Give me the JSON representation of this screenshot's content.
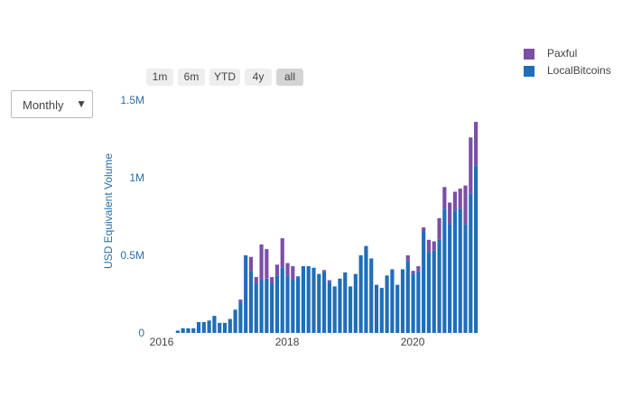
{
  "range_selector": {
    "buttons": [
      {
        "label": "1m",
        "active": false
      },
      {
        "label": "6m",
        "active": false
      },
      {
        "label": "YTD",
        "active": false
      },
      {
        "label": "4y",
        "active": false
      },
      {
        "label": "all",
        "active": true
      }
    ]
  },
  "frequency_dropdown": {
    "selected": "Monthly"
  },
  "colors": {
    "paxful": "#7b4fa6",
    "localbitcoins": "#1f6eb8",
    "axis_text": "#2a6fa8",
    "year_text": "#444444"
  },
  "chart_data": {
    "type": "bar",
    "barmode": "stack",
    "title": "",
    "ylabel": "USD Equivalent Volume",
    "xlabel": "",
    "x_start": "2016-01",
    "x_end": "2021-04",
    "x_ticks": [
      "2016",
      "2018",
      "2020"
    ],
    "y_ticks": [
      "0",
      "0.5M",
      "1M",
      "1.5M"
    ],
    "ylim": [
      0,
      1500000
    ],
    "grid": false,
    "legend_position": "top-right",
    "series": [
      {
        "name": "Paxful",
        "color_key": "paxful",
        "x": [
          "2016-06",
          "2016-07",
          "2016-08",
          "2016-09",
          "2016-10",
          "2016-11",
          "2016-12",
          "2017-01",
          "2017-02",
          "2017-03",
          "2017-04",
          "2017-05",
          "2017-06",
          "2017-07",
          "2017-08",
          "2017-09",
          "2017-10",
          "2017-11",
          "2017-12",
          "2018-01",
          "2018-02",
          "2018-03",
          "2018-04",
          "2018-05",
          "2018-06",
          "2018-07",
          "2018-08",
          "2018-09",
          "2018-10",
          "2018-11",
          "2018-12",
          "2019-01",
          "2019-02",
          "2019-03",
          "2019-04",
          "2019-05",
          "2019-06",
          "2019-07",
          "2019-08",
          "2019-09",
          "2019-10",
          "2019-11",
          "2019-12",
          "2020-01",
          "2020-02",
          "2020-03",
          "2020-04",
          "2020-05",
          "2020-06",
          "2020-07",
          "2020-08",
          "2020-09",
          "2020-10",
          "2020-11",
          "2020-12",
          "2021-01",
          "2021-02",
          "2021-03"
        ],
        "values": [
          0,
          0,
          0,
          0,
          0,
          0,
          0,
          0,
          0,
          0,
          0,
          0,
          15000,
          0,
          90000,
          40000,
          230000,
          190000,
          40000,
          70000,
          190000,
          80000,
          90000,
          5000,
          0,
          0,
          0,
          0,
          15000,
          10000,
          0,
          0,
          0,
          0,
          0,
          0,
          0,
          0,
          0,
          0,
          0,
          0,
          0,
          0,
          40000,
          20000,
          30000,
          20000,
          80000,
          60000,
          140000,
          140000,
          140000,
          120000,
          130000,
          250000,
          360000,
          280000
        ]
      },
      {
        "name": "LocalBitcoins",
        "color_key": "localbitcoins",
        "x": [
          "2016-06",
          "2016-07",
          "2016-08",
          "2016-09",
          "2016-10",
          "2016-11",
          "2016-12",
          "2017-01",
          "2017-02",
          "2017-03",
          "2017-04",
          "2017-05",
          "2017-06",
          "2017-07",
          "2017-08",
          "2017-09",
          "2017-10",
          "2017-11",
          "2017-12",
          "2018-01",
          "2018-02",
          "2018-03",
          "2018-04",
          "2018-05",
          "2018-06",
          "2018-07",
          "2018-08",
          "2018-09",
          "2018-10",
          "2018-11",
          "2018-12",
          "2019-01",
          "2019-02",
          "2019-03",
          "2019-04",
          "2019-05",
          "2019-06",
          "2019-07",
          "2019-08",
          "2019-09",
          "2019-10",
          "2019-11",
          "2019-12",
          "2020-01",
          "2020-02",
          "2020-03",
          "2020-04",
          "2020-05",
          "2020-06",
          "2020-07",
          "2020-08",
          "2020-09",
          "2020-10",
          "2020-11",
          "2020-12",
          "2021-01",
          "2021-02",
          "2021-03"
        ],
        "values": [
          15000,
          30000,
          30000,
          30000,
          70000,
          70000,
          80000,
          110000,
          65000,
          65000,
          90000,
          150000,
          200000,
          500000,
          400000,
          320000,
          340000,
          350000,
          320000,
          370000,
          420000,
          370000,
          340000,
          360000,
          430000,
          430000,
          420000,
          380000,
          390000,
          330000,
          300000,
          350000,
          390000,
          300000,
          380000,
          500000,
          560000,
          480000,
          310000,
          290000,
          370000,
          410000,
          310000,
          410000,
          460000,
          380000,
          400000,
          660000,
          520000,
          530000,
          600000,
          800000,
          700000,
          790000,
          800000,
          700000,
          900000,
          1080000
        ]
      }
    ]
  }
}
